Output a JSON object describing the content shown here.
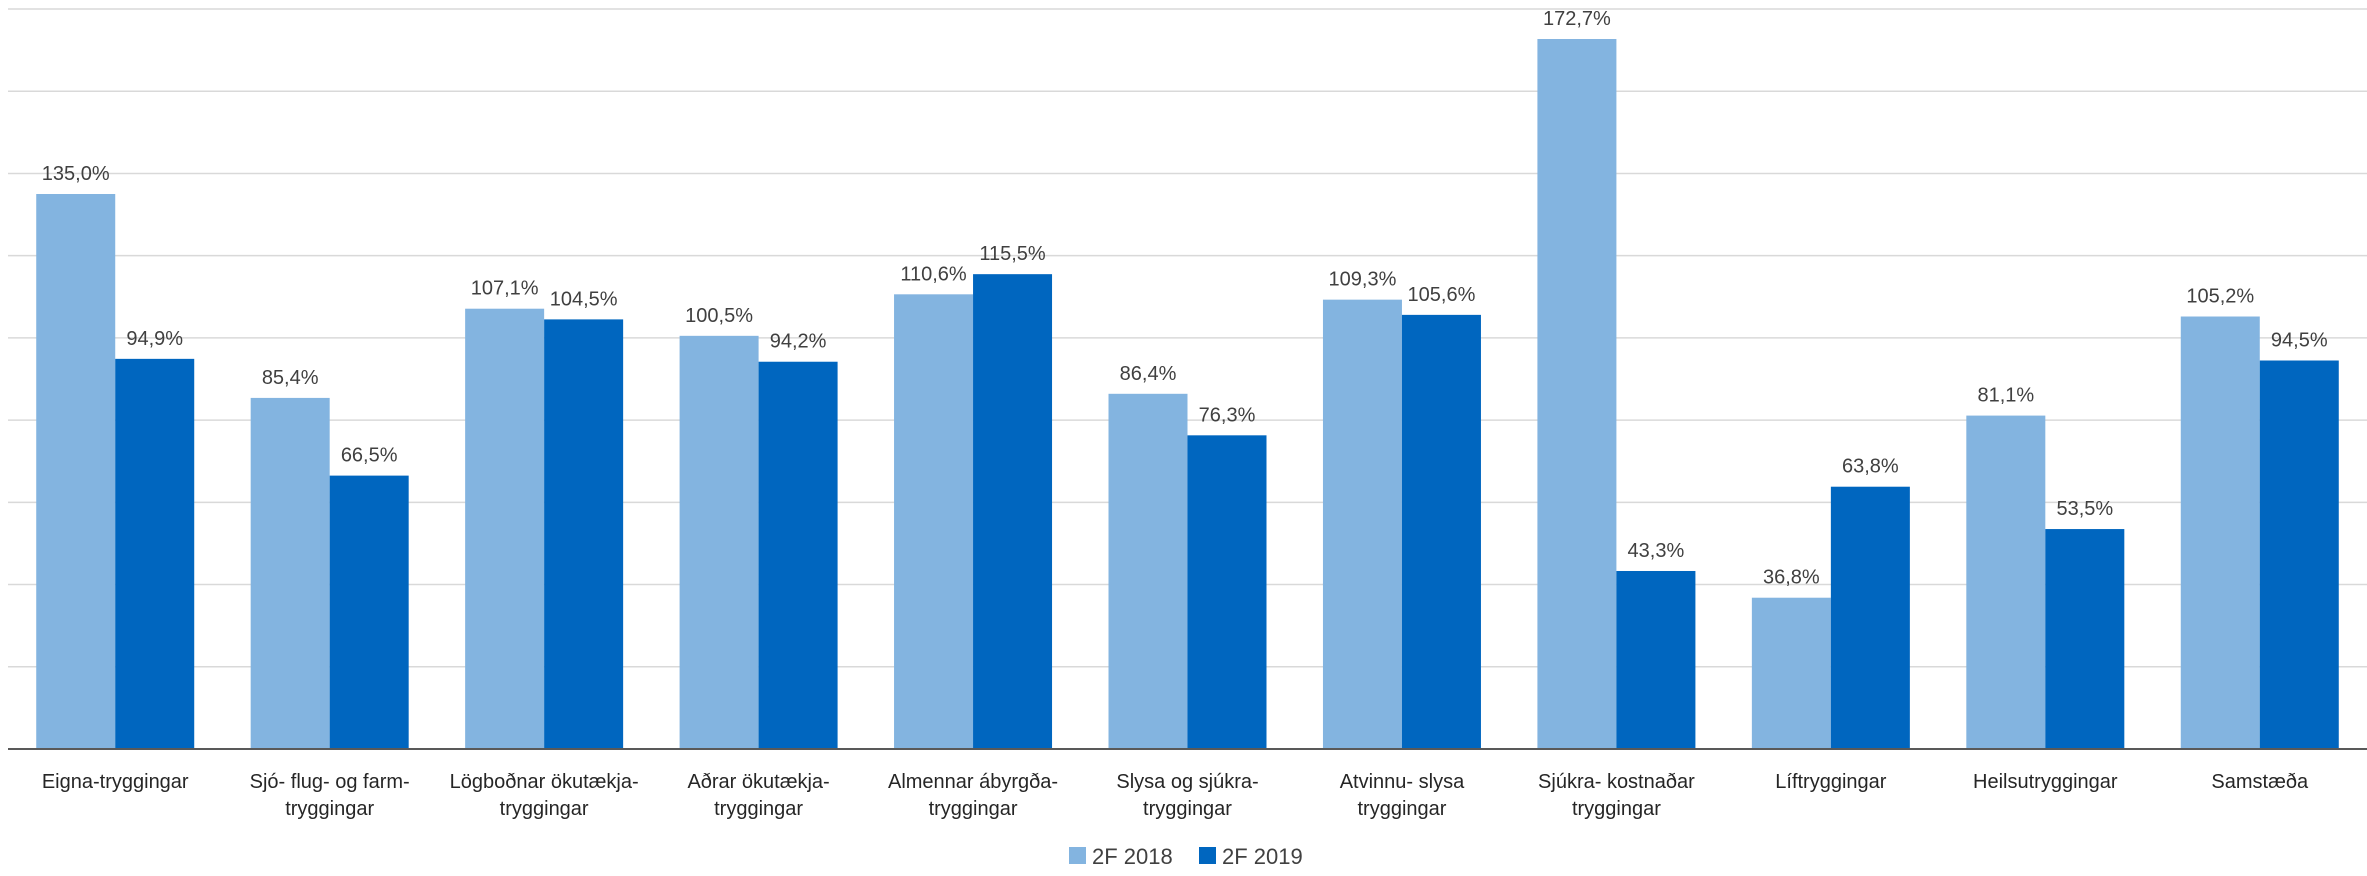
{
  "chart_data": {
    "type": "bar",
    "categories": [
      [
        "Eigna-tryggingar"
      ],
      [
        "Sjó- flug- og farm-",
        "tryggingar"
      ],
      [
        "Lögboðnar ökutækja-",
        "tryggingar"
      ],
      [
        "Aðrar ökutækja-",
        "tryggingar"
      ],
      [
        "Almennar ábyrgða-",
        "tryggingar"
      ],
      [
        "Slysa og sjúkra-",
        "tryggingar"
      ],
      [
        "Atvinnu- slysa",
        "tryggingar"
      ],
      [
        "Sjúkra- kostnaðar",
        "tryggingar"
      ],
      [
        "Líftryggingar"
      ],
      [
        "Heilsutryggingar"
      ],
      [
        "Samstæða"
      ]
    ],
    "series": [
      {
        "name": "2F 2018",
        "color": "#83b4e0",
        "values": [
          135.0,
          85.4,
          107.1,
          100.5,
          110.6,
          86.4,
          109.3,
          172.7,
          36.8,
          81.1,
          105.2
        ],
        "labels": [
          "135,0%",
          "85,4%",
          "107,1%",
          "100,5%",
          "110,6%",
          "86,4%",
          "109,3%",
          "172,7%",
          "36,8%",
          "81,1%",
          "105,2%"
        ]
      },
      {
        "name": "2F 2019",
        "color": "#0066bf",
        "values": [
          94.9,
          66.5,
          104.5,
          94.2,
          115.5,
          76.3,
          105.6,
          43.3,
          63.8,
          53.5,
          94.5
        ],
        "labels": [
          "94,9%",
          "66,5%",
          "104,5%",
          "94,2%",
          "115,5%",
          "76,3%",
          "105,6%",
          "43,3%",
          "63,8%",
          "53,5%",
          "94,5%"
        ]
      }
    ],
    "ylim": [
      0,
      180
    ],
    "grid": true,
    "legend": "bottom-center"
  }
}
